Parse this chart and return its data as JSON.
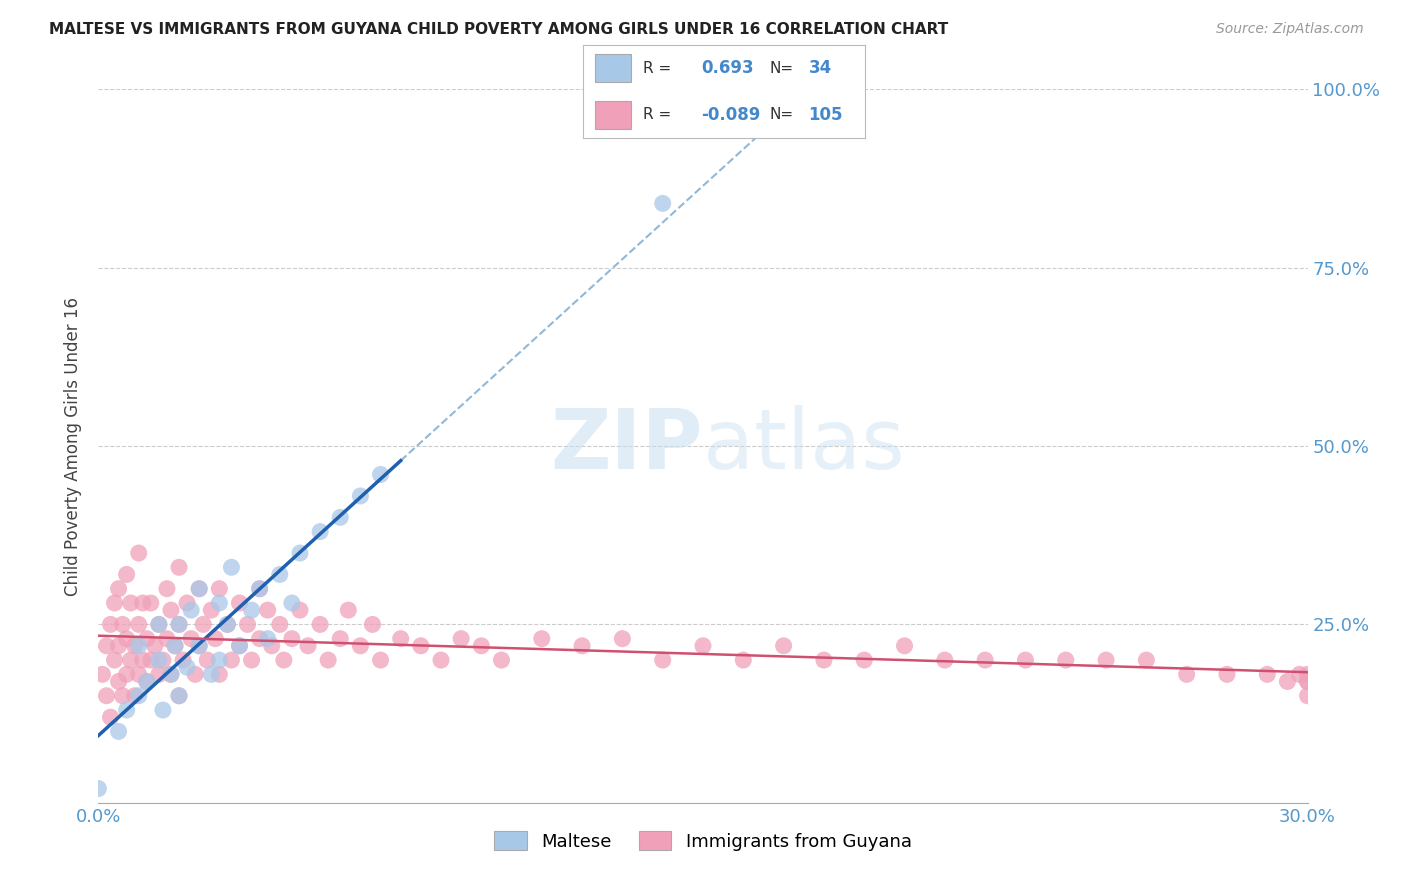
{
  "title": "MALTESE VS IMMIGRANTS FROM GUYANA CHILD POVERTY AMONG GIRLS UNDER 16 CORRELATION CHART",
  "source": "Source: ZipAtlas.com",
  "ylabel": "Child Poverty Among Girls Under 16",
  "xlim": [
    0.0,
    0.3
  ],
  "ylim": [
    0.0,
    1.0
  ],
  "xticks": [
    0.0,
    0.05,
    0.1,
    0.15,
    0.2,
    0.25,
    0.3
  ],
  "xticklabels": [
    "0.0%",
    "",
    "",
    "",
    "",
    "",
    "30.0%"
  ],
  "yticks": [
    0.0,
    0.25,
    0.5,
    0.75,
    1.0
  ],
  "yticklabels": [
    "",
    "25.0%",
    "50.0%",
    "75.0%",
    "100.0%"
  ],
  "legend_labels": [
    "Maltese",
    "Immigrants from Guyana"
  ],
  "R_maltese": 0.693,
  "N_maltese": 34,
  "R_guyana": -0.089,
  "N_guyana": 105,
  "color_maltese": "#a8c8e8",
  "color_guyana": "#f0a0b8",
  "line_color_maltese": "#2060b0",
  "line_color_guyana": "#d05070",
  "maltese_x": [
    0.0,
    0.005,
    0.007,
    0.01,
    0.01,
    0.012,
    0.015,
    0.015,
    0.016,
    0.018,
    0.019,
    0.02,
    0.02,
    0.022,
    0.023,
    0.025,
    0.025,
    0.028,
    0.03,
    0.03,
    0.032,
    0.033,
    0.035,
    0.038,
    0.04,
    0.042,
    0.045,
    0.048,
    0.05,
    0.055,
    0.06,
    0.065,
    0.07,
    0.14
  ],
  "maltese_y": [
    0.02,
    0.1,
    0.13,
    0.15,
    0.22,
    0.17,
    0.2,
    0.25,
    0.13,
    0.18,
    0.22,
    0.15,
    0.25,
    0.19,
    0.27,
    0.22,
    0.3,
    0.18,
    0.2,
    0.28,
    0.25,
    0.33,
    0.22,
    0.27,
    0.3,
    0.23,
    0.32,
    0.28,
    0.35,
    0.38,
    0.4,
    0.43,
    0.46,
    0.84
  ],
  "guyana_x": [
    0.001,
    0.002,
    0.002,
    0.003,
    0.003,
    0.004,
    0.004,
    0.005,
    0.005,
    0.005,
    0.006,
    0.006,
    0.007,
    0.007,
    0.007,
    0.008,
    0.008,
    0.009,
    0.009,
    0.01,
    0.01,
    0.01,
    0.011,
    0.011,
    0.012,
    0.012,
    0.013,
    0.013,
    0.014,
    0.015,
    0.015,
    0.016,
    0.017,
    0.017,
    0.018,
    0.018,
    0.019,
    0.02,
    0.02,
    0.02,
    0.021,
    0.022,
    0.023,
    0.024,
    0.025,
    0.025,
    0.026,
    0.027,
    0.028,
    0.029,
    0.03,
    0.03,
    0.032,
    0.033,
    0.035,
    0.035,
    0.037,
    0.038,
    0.04,
    0.04,
    0.042,
    0.043,
    0.045,
    0.046,
    0.048,
    0.05,
    0.052,
    0.055,
    0.057,
    0.06,
    0.062,
    0.065,
    0.068,
    0.07,
    0.075,
    0.08,
    0.085,
    0.09,
    0.095,
    0.1,
    0.11,
    0.12,
    0.13,
    0.14,
    0.15,
    0.16,
    0.17,
    0.18,
    0.19,
    0.2,
    0.21,
    0.22,
    0.23,
    0.24,
    0.25,
    0.26,
    0.27,
    0.28,
    0.29,
    0.295,
    0.298,
    0.3,
    0.3,
    0.3,
    0.3
  ],
  "guyana_y": [
    0.18,
    0.15,
    0.22,
    0.12,
    0.25,
    0.2,
    0.28,
    0.17,
    0.22,
    0.3,
    0.15,
    0.25,
    0.18,
    0.23,
    0.32,
    0.2,
    0.28,
    0.15,
    0.22,
    0.18,
    0.25,
    0.35,
    0.2,
    0.28,
    0.17,
    0.23,
    0.2,
    0.28,
    0.22,
    0.18,
    0.25,
    0.2,
    0.3,
    0.23,
    0.18,
    0.27,
    0.22,
    0.15,
    0.25,
    0.33,
    0.2,
    0.28,
    0.23,
    0.18,
    0.3,
    0.22,
    0.25,
    0.2,
    0.27,
    0.23,
    0.18,
    0.3,
    0.25,
    0.2,
    0.28,
    0.22,
    0.25,
    0.2,
    0.3,
    0.23,
    0.27,
    0.22,
    0.25,
    0.2,
    0.23,
    0.27,
    0.22,
    0.25,
    0.2,
    0.23,
    0.27,
    0.22,
    0.25,
    0.2,
    0.23,
    0.22,
    0.2,
    0.23,
    0.22,
    0.2,
    0.23,
    0.22,
    0.23,
    0.2,
    0.22,
    0.2,
    0.22,
    0.2,
    0.2,
    0.22,
    0.2,
    0.2,
    0.2,
    0.2,
    0.2,
    0.2,
    0.18,
    0.18,
    0.18,
    0.17,
    0.18,
    0.17,
    0.17,
    0.18,
    0.15
  ]
}
